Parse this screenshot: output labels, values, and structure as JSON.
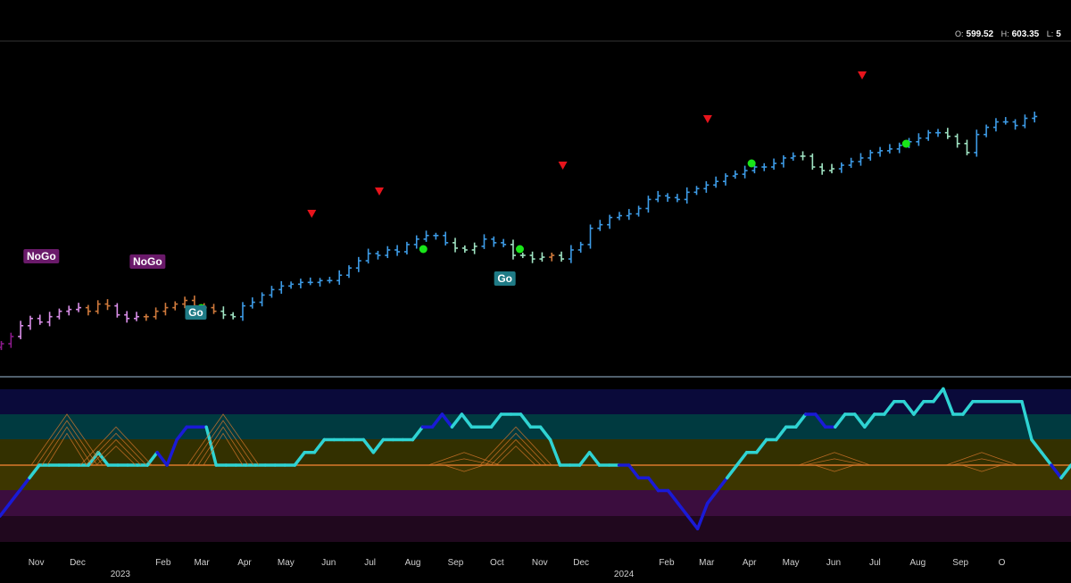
{
  "ohlc": {
    "o_label": "O:",
    "o_value": "599.52",
    "h_label": "H:",
    "h_value": "603.35",
    "l_label": "L:",
    "l_value": "5"
  },
  "colors": {
    "background": "#000000",
    "strong_go": "#3d9be6",
    "weak_go": "#9fe3c2",
    "strong_nogo": "#d98ee8",
    "weak_nogo": "#d07a3c",
    "nogo_dark": "#8c1a8c",
    "go_label_bg": "#1f7b86",
    "nogo_label_bg": "#6a1a6a",
    "signal_triangle": "#e8141c",
    "signal_dot": "#19e619",
    "osc_light": "#2fd3d3",
    "osc_dark": "#1a1ad6",
    "zero_line": "#d9782b",
    "divider": "#6a7f90"
  },
  "chart_data": [
    {
      "type": "ohlc",
      "panel": "price",
      "x_axis": {
        "month_labels": [
          "Nov",
          "Dec",
          "Feb",
          "Mar",
          "Apr",
          "May",
          "Jun",
          "Jul",
          "Aug",
          "Sep",
          "Oct",
          "Nov",
          "Dec",
          "Feb",
          "Mar",
          "Apr",
          "May",
          "Jun",
          "Jul",
          "Aug",
          "Sep",
          "O"
        ],
        "year_labels": [
          "2023",
          "2024"
        ]
      },
      "weekly_closes": [
        410,
        414,
        420,
        424,
        422,
        425,
        428,
        429,
        430,
        428,
        432,
        431,
        426,
        424,
        425,
        425,
        428,
        430,
        432,
        434,
        431,
        430,
        428,
        426,
        425,
        431,
        433,
        437,
        440,
        442,
        443,
        444,
        444,
        445,
        445,
        448,
        452,
        456,
        460,
        459,
        462,
        461,
        465,
        468,
        470,
        470,
        466,
        463,
        462,
        464,
        468,
        466,
        465,
        459,
        459,
        457,
        458,
        459,
        457,
        462,
        465,
        474,
        476,
        480,
        481,
        482,
        485,
        490,
        492,
        491,
        490,
        494,
        496,
        498,
        500,
        503,
        504,
        506,
        508,
        508,
        510,
        513,
        514,
        514,
        508,
        506,
        507,
        509,
        511,
        513,
        516,
        517,
        518,
        520,
        522,
        524,
        527,
        527,
        525,
        521,
        516,
        526,
        530,
        533,
        533,
        531,
        535,
        536
      ],
      "go_labels": [
        {
          "text": "NoGo",
          "date": "2022-11-28"
        },
        {
          "text": "NoGo",
          "date": "2023-02-13"
        },
        {
          "text": "Go",
          "date": "2023-03-20"
        },
        {
          "text": "Go",
          "date": "2023-10-30"
        }
      ],
      "signal_triangles": [
        "2023-06-12",
        "2023-07-31",
        "2023-12-11",
        "2024-03-25",
        "2024-07-15"
      ],
      "signal_dots": [
        "2023-03-20",
        "2023-08-28",
        "2023-11-06",
        "2024-04-22",
        "2024-08-12"
      ]
    },
    {
      "type": "line",
      "panel": "oscillator",
      "name": "",
      "values": [
        -4,
        -3,
        -2,
        -1,
        0,
        0,
        0,
        0,
        0,
        0,
        1,
        0,
        0,
        0,
        0,
        0,
        1,
        0,
        2,
        3,
        3,
        3,
        0,
        0,
        0,
        0,
        0,
        0,
        0,
        0,
        0,
        1,
        1,
        2,
        2,
        2,
        2,
        2,
        1,
        2,
        2,
        2,
        2,
        3,
        3,
        4,
        3,
        4,
        3,
        3,
        3,
        4,
        4,
        4,
        3,
        3,
        2,
        0,
        0,
        0,
        1,
        0,
        0,
        0,
        0,
        -1,
        -1,
        -2,
        -2,
        -3,
        -4,
        -5,
        -3,
        -2,
        -1,
        0,
        1,
        1,
        2,
        2,
        3,
        3,
        4,
        4,
        3,
        3,
        4,
        4,
        3,
        4,
        4,
        5,
        5,
        4,
        5,
        5,
        6,
        4,
        4,
        5,
        5,
        5,
        5,
        5,
        5,
        2,
        1,
        0,
        -1,
        0
      ],
      "levels": [
        6,
        4,
        2,
        0,
        -2,
        -4
      ]
    }
  ]
}
